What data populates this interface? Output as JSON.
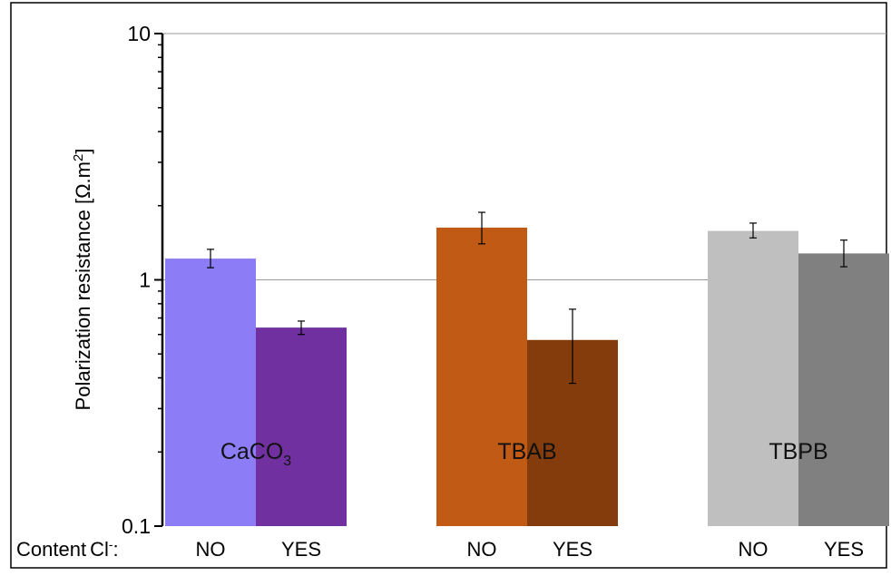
{
  "chart_data": {
    "type": "bar",
    "scale": "log",
    "ylabel": "Polarization resistance [Ω.m",
    "ylabel_sup": "2",
    "ylabel_close": "]",
    "ylim": [
      0.1,
      10
    ],
    "yticks": [
      "0.1",
      "1",
      "10"
    ],
    "grid": true,
    "groups": [
      {
        "name": "CaCO",
        "name_sub": "3",
        "bars": [
          {
            "label": "NO",
            "value": 1.22,
            "err_low": 1.12,
            "err_high": 1.33,
            "color": "#8C7CF5"
          },
          {
            "label": "YES",
            "value": 0.64,
            "err_low": 0.6,
            "err_high": 0.68,
            "color": "#7030A0"
          }
        ]
      },
      {
        "name": "TBAB",
        "name_sub": "",
        "bars": [
          {
            "label": "NO",
            "value": 1.63,
            "err_low": 1.4,
            "err_high": 1.88,
            "color": "#C05A14"
          },
          {
            "label": "YES",
            "value": 0.57,
            "err_low": 0.38,
            "err_high": 0.76,
            "color": "#843C0C"
          }
        ]
      },
      {
        "name": "TBPB",
        "name_sub": "",
        "bars": [
          {
            "label": "NO",
            "value": 1.58,
            "err_low": 1.48,
            "err_high": 1.7,
            "color": "#BFBFBF"
          },
          {
            "label": "YES",
            "value": 1.28,
            "err_low": 1.13,
            "err_high": 1.45,
            "color": "#808080"
          }
        ]
      }
    ],
    "row_label": "Content",
    "row_label_ion": "Cl",
    "row_label_sup": "-",
    "row_label_colon": ":"
  }
}
